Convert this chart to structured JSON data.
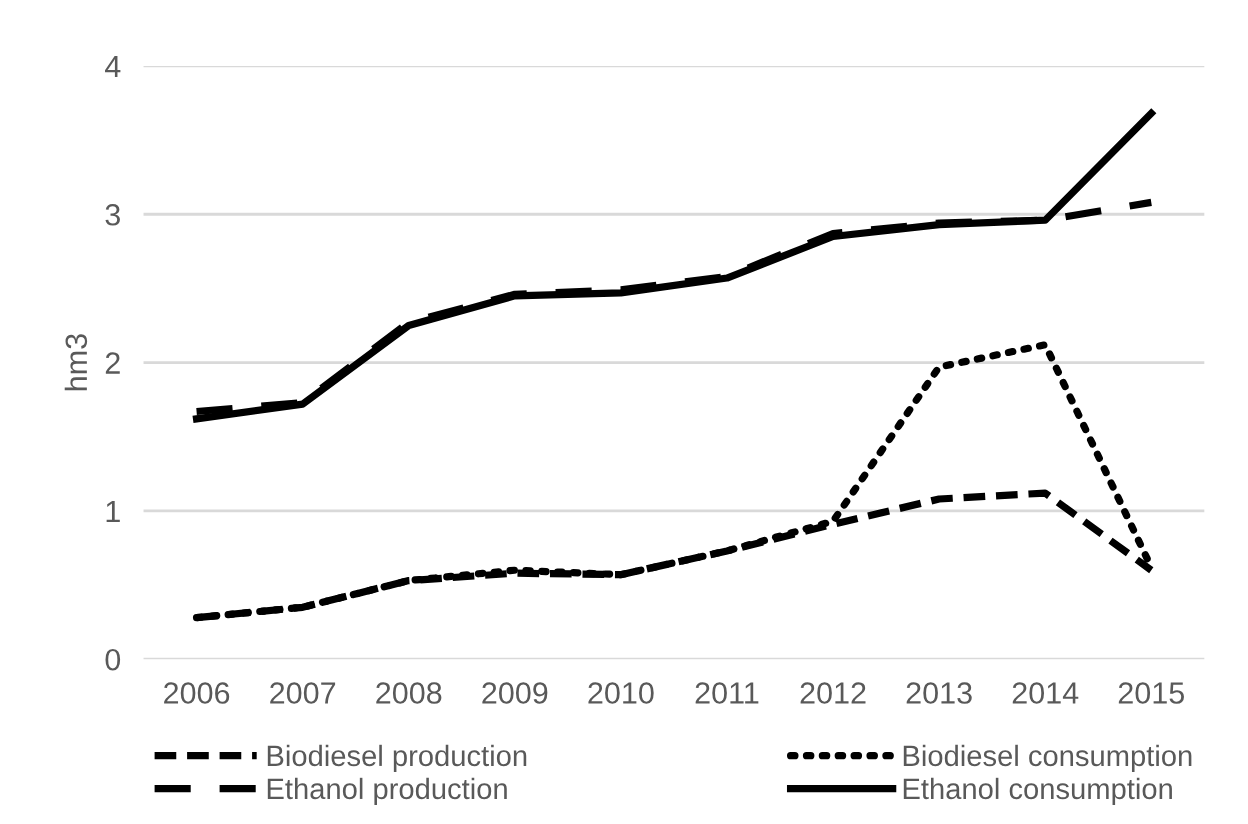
{
  "chart_data": {
    "type": "line",
    "ylabel": "hm3",
    "categories": [
      "2006",
      "2007",
      "2008",
      "2009",
      "2010",
      "2011",
      "2012",
      "2013",
      "2014",
      "2015"
    ],
    "series": [
      {
        "name": "Biodiesel production",
        "color": "#000000",
        "line_style": "dashed",
        "values": [
          0.28,
          0.35,
          0.53,
          0.58,
          0.57,
          0.73,
          0.91,
          1.08,
          1.12,
          0.6
        ]
      },
      {
        "name": "Biodiesel consumption",
        "color": "#000000",
        "line_style": "dotted",
        "values": [
          0.28,
          0.35,
          0.53,
          0.6,
          0.57,
          0.73,
          0.93,
          1.97,
          2.12,
          0.62
        ]
      },
      {
        "name": "Ethanol production",
        "color": "#000000",
        "line_style": "longdash",
        "values": [
          1.67,
          1.73,
          2.27,
          2.46,
          2.49,
          2.58,
          2.87,
          2.94,
          2.96,
          3.08
        ]
      },
      {
        "name": "Ethanol consumption",
        "color": "#000000",
        "line_style": "solid",
        "values": [
          1.62,
          1.72,
          2.25,
          2.45,
          2.47,
          2.57,
          2.85,
          2.93,
          2.96,
          3.68
        ]
      }
    ],
    "ylim": [
      0,
      4
    ],
    "yticks": [
      0,
      1,
      2,
      3,
      4
    ],
    "grid": "y",
    "legend": "bottom",
    "marker": "none"
  }
}
